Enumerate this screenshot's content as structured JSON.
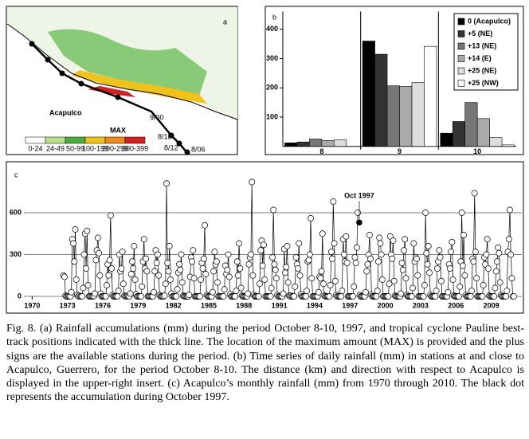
{
  "map": {
    "label": "a",
    "places": [
      "Acapulco",
      "MAX"
    ],
    "track_labels": [
      "9/00",
      "8/18",
      "8/12",
      "8/06"
    ],
    "legend": [
      "0-24",
      "24-49",
      "50-99",
      "100-199",
      "200-299",
      "300-399"
    ],
    "legend_colors": [
      "#ffffff",
      "#b6e08a",
      "#4caf3a",
      "#f2c21a",
      "#f08a1a",
      "#d42020"
    ]
  },
  "chart_data": [
    {
      "type": "bar",
      "label": "b",
      "categories": [
        "8",
        "9",
        "10"
      ],
      "ylim": [
        0,
        450
      ],
      "yticks": [
        100,
        200,
        300,
        400
      ],
      "series": [
        {
          "name": "0 (Acapulco)",
          "color": "#000000",
          "values": [
            12,
            360,
            45
          ]
        },
        {
          "name": "+5 (NE)",
          "color": "#333333",
          "values": [
            15,
            315,
            85
          ]
        },
        {
          "name": "+13 (NE)",
          "color": "#777777",
          "values": [
            25,
            207,
            150
          ]
        },
        {
          "name": "+14 (E)",
          "color": "#aaaaaa",
          "values": [
            20,
            205,
            95
          ]
        },
        {
          "name": "+25 (NE)",
          "color": "#dddddd",
          "values": [
            22,
            218,
            30
          ]
        },
        {
          "name": "+25 (NW)",
          "color": "#ffffff",
          "values": [
            0,
            342,
            5
          ]
        }
      ]
    },
    {
      "type": "line",
      "label": "c",
      "xlim": [
        1969.3,
        2011.6
      ],
      "ylim": [
        0,
        900
      ],
      "xticks": [
        1970,
        1973,
        1976,
        1979,
        1982,
        1985,
        1988,
        1991,
        1994,
        1997,
        2000,
        2003,
        2006,
        2009
      ],
      "yticks": [
        0,
        300,
        600
      ],
      "x": [
        1972,
        1973,
        1974,
        1975,
        1976,
        1977,
        1978,
        1979,
        1980,
        1981,
        1982,
        1983,
        1984,
        1985,
        1986,
        1987,
        1988,
        1989,
        1990,
        1991,
        1992,
        1993,
        1994,
        1995,
        1996,
        1997,
        1998,
        1999,
        2000,
        2001,
        2002,
        2003,
        2004,
        2005,
        2006,
        2007,
        2008,
        2009,
        2010
      ],
      "values": [
        [
          null,
          null,
          null,
          null,
          null,
          null,
          null,
          null,
          150,
          140,
          5,
          0
        ],
        [
          0,
          2,
          0,
          0,
          30,
          410,
          380,
          250,
          480,
          120,
          10,
          0
        ],
        [
          5,
          0,
          0,
          0,
          60,
          300,
          450,
          200,
          470,
          80,
          0,
          2
        ],
        [
          0,
          0,
          0,
          3,
          20,
          260,
          330,
          420,
          310,
          150,
          20,
          0
        ],
        [
          0,
          0,
          1,
          0,
          80,
          230,
          150,
          260,
          580,
          200,
          10,
          0
        ],
        [
          0,
          0,
          0,
          0,
          40,
          300,
          180,
          200,
          320,
          90,
          5,
          0
        ],
        [
          0,
          3,
          0,
          0,
          20,
          160,
          250,
          200,
          360,
          120,
          15,
          0
        ],
        [
          0,
          0,
          0,
          0,
          70,
          250,
          410,
          200,
          270,
          180,
          0,
          0
        ],
        [
          2,
          0,
          0,
          0,
          30,
          180,
          330,
          240,
          300,
          150,
          10,
          0
        ],
        [
          0,
          0,
          0,
          5,
          90,
          810,
          240,
          180,
          360,
          120,
          20,
          0
        ],
        [
          0,
          0,
          0,
          0,
          50,
          170,
          230,
          190,
          300,
          100,
          5,
          1
        ],
        [
          0,
          0,
          0,
          0,
          10,
          140,
          280,
          250,
          330,
          130,
          0,
          0
        ],
        [
          0,
          0,
          0,
          0,
          120,
          240,
          200,
          270,
          510,
          160,
          10,
          0
        ],
        [
          0,
          0,
          0,
          0,
          30,
          180,
          320,
          230,
          250,
          100,
          0,
          0
        ],
        [
          0,
          0,
          0,
          0,
          50,
          220,
          160,
          190,
          300,
          140,
          15,
          0
        ],
        [
          0,
          0,
          0,
          0,
          40,
          250,
          150,
          380,
          200,
          60,
          5,
          0
        ],
        [
          0,
          0,
          0,
          0,
          20,
          230,
          280,
          300,
          820,
          150,
          10,
          0
        ],
        [
          0,
          0,
          0,
          0,
          90,
          330,
          400,
          220,
          370,
          120,
          0,
          0
        ],
        [
          0,
          0,
          0,
          0,
          60,
          280,
          620,
          230,
          190,
          130,
          10,
          0
        ],
        [
          0,
          0,
          0,
          0,
          20,
          340,
          170,
          210,
          360,
          100,
          5,
          0
        ],
        [
          5,
          0,
          0,
          0,
          70,
          280,
          230,
          200,
          380,
          150,
          15,
          0
        ],
        [
          0,
          0,
          0,
          0,
          40,
          250,
          260,
          300,
          560,
          130,
          0,
          0
        ],
        [
          0,
          0,
          0,
          0,
          30,
          140,
          130,
          180,
          450,
          90,
          5,
          0
        ],
        [
          0,
          0,
          0,
          0,
          80,
          320,
          270,
          680,
          380,
          110,
          10,
          0
        ],
        [
          0,
          0,
          0,
          0,
          40,
          410,
          300,
          250,
          430,
          240,
          0,
          0
        ],
        [
          0,
          0,
          0,
          0,
          70,
          280,
          240,
          350,
          600,
          null,
          10,
          0
        ],
        [
          0,
          0,
          0,
          0,
          30,
          180,
          230,
          300,
          440,
          270,
          10,
          0
        ],
        [
          0,
          0,
          0,
          0,
          40,
          250,
          420,
          380,
          300,
          120,
          0,
          0
        ],
        [
          0,
          0,
          0,
          0,
          90,
          430,
          300,
          270,
          400,
          110,
          5,
          0
        ],
        [
          0,
          0,
          0,
          0,
          20,
          240,
          190,
          330,
          410,
          130,
          10,
          0
        ],
        [
          0,
          0,
          0,
          0,
          60,
          380,
          250,
          280,
          270,
          150,
          0,
          0
        ],
        [
          0,
          0,
          0,
          0,
          80,
          600,
          310,
          230,
          360,
          170,
          10,
          0
        ],
        [
          0,
          0,
          0,
          0,
          40,
          200,
          250,
          330,
          280,
          110,
          0,
          0
        ],
        [
          0,
          0,
          0,
          0,
          30,
          230,
          200,
          320,
          390,
          120,
          5,
          0
        ],
        [
          0,
          0,
          0,
          0,
          70,
          250,
          600,
          220,
          440,
          150,
          10,
          0
        ],
        [
          0,
          0,
          0,
          0,
          40,
          270,
          250,
          740,
          320,
          130,
          0,
          0
        ],
        [
          0,
          0,
          0,
          0,
          80,
          280,
          230,
          300,
          410,
          200,
          5,
          0
        ],
        [
          0,
          0,
          0,
          0,
          60,
          180,
          250,
          350,
          310,
          100,
          10,
          0
        ],
        [
          0,
          0,
          0,
          0,
          40,
          320,
          410,
          620,
          300,
          130,
          0,
          0
        ]
      ],
      "annotation": {
        "text": "Oct 1997",
        "x": 1997.79,
        "y": 530
      }
    }
  ],
  "caption": "Fig. 8. (a) Rainfall accumulations (mm) during the period October 8-10, 1997, and tropical cyclone Pauline best-track positions indicated with the thick line. The location of the maximum amount (MAX) is provided and the plus signs are the available stations during the period. (b) Time series of daily rainfall (mm) in stations at and close to Acapulco, Guerrero, for the period October 8-10. The distance (km) and direction with respect to Acapulco is displayed in the upper-right insert. (c) Acapulco’s monthly rainfall (mm) from 1970 through 2010. The black dot represents the accumulation during October 1997."
}
